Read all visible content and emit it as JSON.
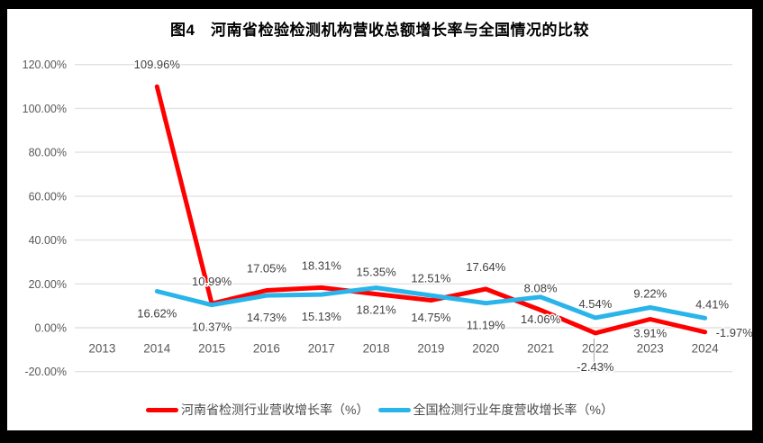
{
  "frame": {
    "background": "#000000",
    "chart_background": "#ffffff"
  },
  "chart_data": {
    "type": "line",
    "title": "图4　河南省检验检测机构营收总额增长率与全国情况的比较",
    "categories": [
      "2013",
      "2014",
      "2015",
      "2016",
      "2017",
      "2018",
      "2019",
      "2020",
      "2021",
      "2022",
      "2023",
      "2024"
    ],
    "ylim": [
      -20,
      120
    ],
    "grid": true,
    "legend_position": "bottom",
    "y_axis": {
      "ticks": [
        {
          "value": 120,
          "label": "120.00%"
        },
        {
          "value": 100,
          "label": "100.00%"
        },
        {
          "value": 80,
          "label": "80.00%"
        },
        {
          "value": 60,
          "label": "60.00%"
        },
        {
          "value": 40,
          "label": "40.00%"
        },
        {
          "value": 20,
          "label": "20.00%"
        },
        {
          "value": 0,
          "label": "0.00%"
        },
        {
          "value": -20,
          "label": "-20.00%"
        }
      ]
    },
    "series": [
      {
        "name": "河南省检测行业营收增长率（%）",
        "color": "#FF0000",
        "values": [
          null,
          109.96,
          10.99,
          17.05,
          18.31,
          15.35,
          12.51,
          17.64,
          8.08,
          -2.43,
          3.91,
          -1.97
        ],
        "data_labels": [
          "",
          "109.96%",
          "10.99%",
          "17.05%",
          "18.31%",
          "15.35%",
          "12.51%",
          "17.64%",
          "8.08%",
          "-2.43%",
          "3.91%",
          "-1.97%"
        ],
        "label_positions": [
          "none",
          "above",
          "above",
          "above",
          "above",
          "above",
          "above",
          "above",
          "above",
          "below-leader",
          "below-near",
          "right"
        ]
      },
      {
        "name": "全国检测行业年度营收增长率（%）",
        "color": "#29B4EA",
        "values": [
          null,
          16.62,
          10.37,
          14.73,
          15.13,
          18.21,
          14.75,
          11.19,
          14.06,
          4.54,
          9.22,
          4.41
        ],
        "data_labels": [
          "",
          "16.62%",
          "10.37%",
          "14.73%",
          "15.13%",
          "18.21%",
          "14.75%",
          "11.19%",
          "14.06%",
          "4.54%",
          "9.22%",
          "4.41%"
        ],
        "label_positions": [
          "none",
          "below",
          "below",
          "below",
          "below",
          "below",
          "below",
          "below",
          "below",
          "above-near",
          "above-near",
          "above-near"
        ]
      }
    ],
    "styles": {
      "gridline_color": "#E2E2E2",
      "axis_tick_color": "#595959",
      "data_label_color": "#3F3F3F",
      "leader_line_color": "#A6A6A6"
    }
  }
}
